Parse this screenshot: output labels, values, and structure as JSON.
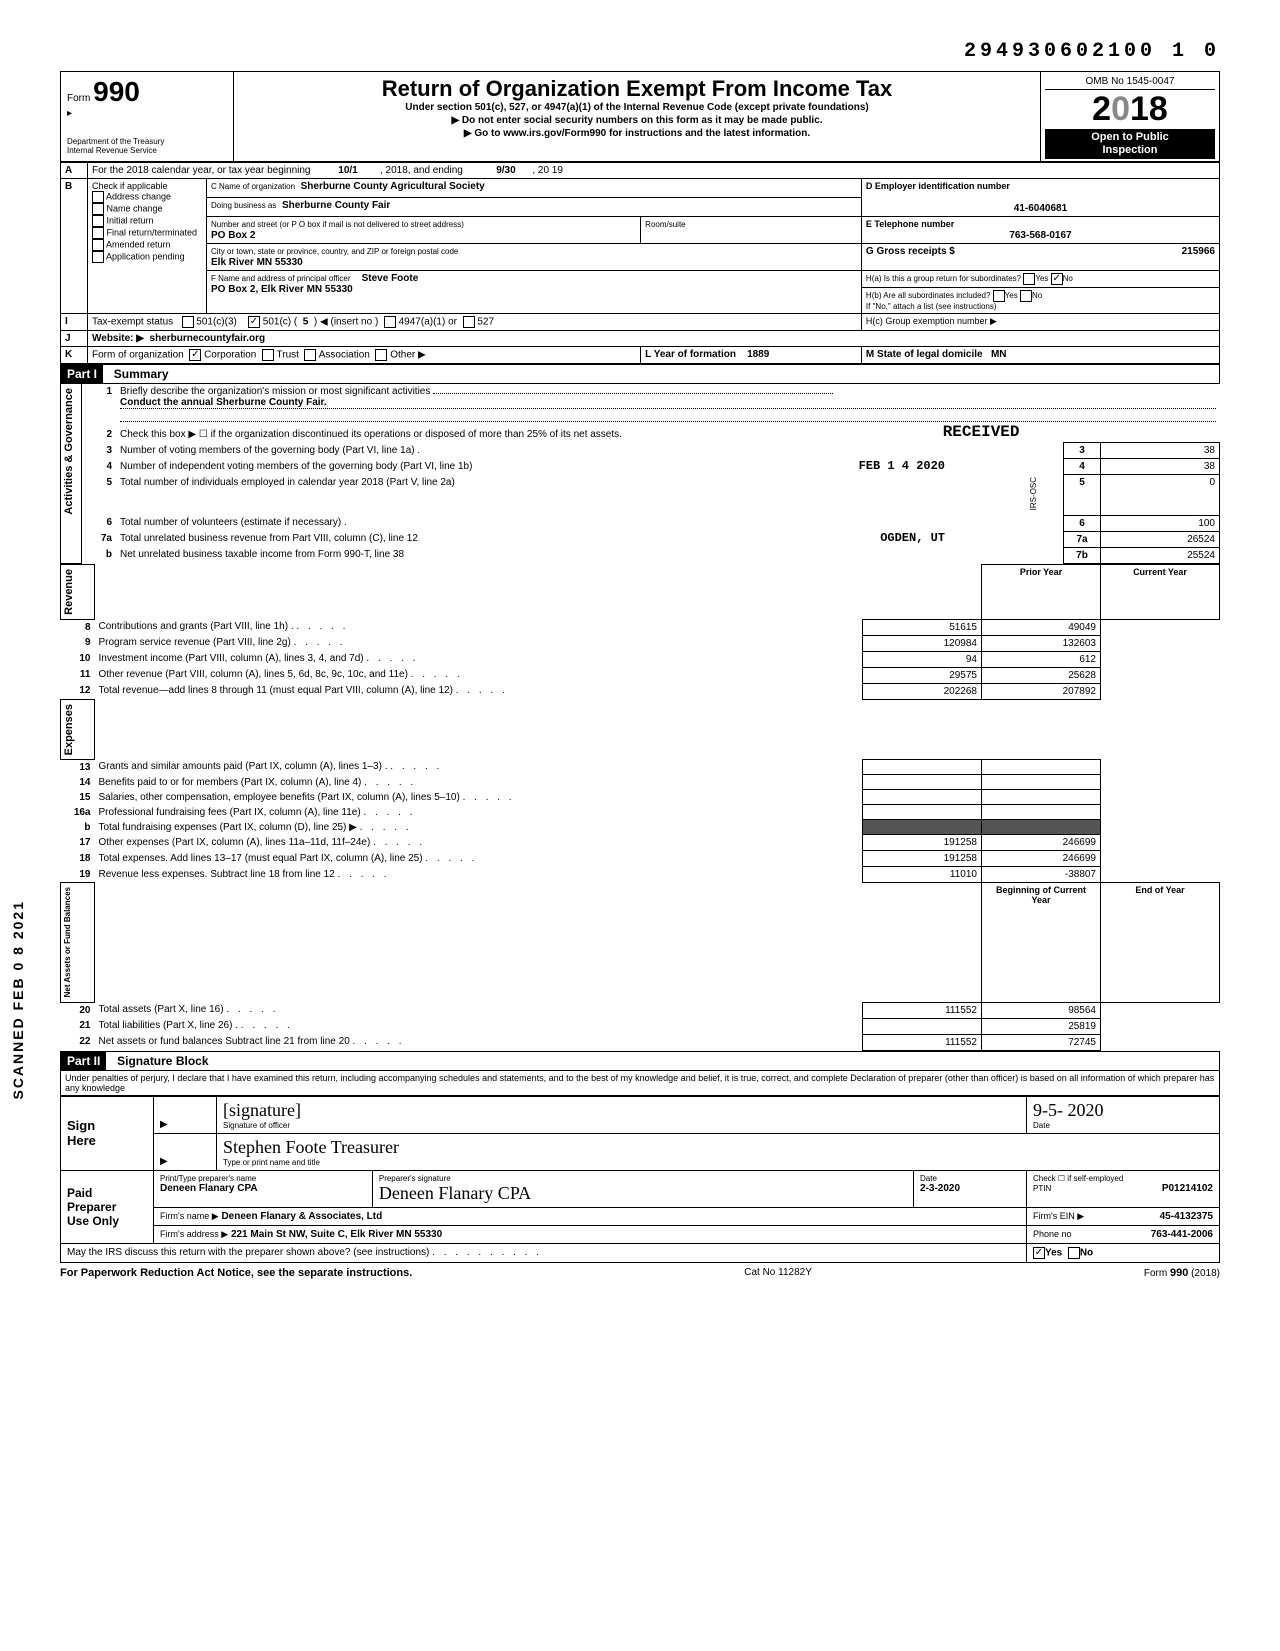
{
  "top_number": "294930602100 1  0",
  "side_stamp": "SCANNED FEB 0 8 2021",
  "header": {
    "form_label": "Form",
    "form_number": "990",
    "dept1": "Department of the Treasury",
    "dept2": "Internal Revenue Service",
    "title": "Return of Organization Exempt From Income Tax",
    "subtitle": "Under section 501(c), 527, or 4947(a)(1) of the Internal Revenue Code (except private foundations)",
    "note1": "▶ Do not enter social security numbers on this form as it may be made public.",
    "note2": "▶ Go to www.irs.gov/Form990 for instructions and the latest information.",
    "omb": "OMB No 1545-0047",
    "year": "2018",
    "open1": "Open to Public",
    "open2": "Inspection"
  },
  "rowA": {
    "label": "A",
    "text": "For the 2018 calendar year, or tax year beginning",
    "begin": "10/1",
    "mid": ", 2018, and ending",
    "end": "9/30",
    "end_year": ", 20  19"
  },
  "rowB": {
    "label": "B",
    "check_label": "Check if applicable",
    "items": [
      "Address change",
      "Name change",
      "Initial return",
      "Final return/terminated",
      "Amended return",
      "Application pending"
    ]
  },
  "rowC": {
    "name_label": "C Name of organization",
    "name": "Sherburne County Agricultural Society",
    "dba_label": "Doing business as",
    "dba": "Sherburne County Fair",
    "addr_label": "Number and street (or P O  box if mail is not delivered to street address)",
    "room_label": "Room/suite",
    "addr": "PO Box 2",
    "city_label": "City or town, state or province, country, and ZIP or foreign postal code",
    "city": "Elk River MN 55330"
  },
  "rowD": {
    "label": "D Employer identification number",
    "value": "41-6040681"
  },
  "rowE": {
    "label": "E Telephone number",
    "value": "763-568-0167"
  },
  "rowG": {
    "label": "G Gross receipts $",
    "value": "215966"
  },
  "rowF": {
    "label": "F Name and address of principal officer",
    "name": "Steve Foote",
    "addr": "PO Box 2, Elk River MN  55330"
  },
  "rowH": {
    "a_label": "H(a) Is this a group return for subordinates?",
    "yes": "Yes",
    "no": "No",
    "a_checked": "no",
    "b_label": "H(b) Are all subordinates included?",
    "b_note": "If \"No,\" attach a list  (see instructions)",
    "c_label": "H(c) Group exemption number ▶"
  },
  "rowI": {
    "label": "I",
    "text": "Tax-exempt status",
    "opts": [
      "501(c)(3)",
      "501(c) (",
      "5",
      ") ◀ (insert no )",
      "4947(a)(1) or",
      "527"
    ],
    "checked_501c": true
  },
  "rowJ": {
    "label": "J",
    "text": "Website: ▶",
    "value": "sherburnecountyfair.org"
  },
  "rowK": {
    "label": "K",
    "text": "Form of organization",
    "opts": [
      "Corporation",
      "Trust",
      "Association",
      "Other ▶"
    ],
    "checked": "Corporation",
    "L_label": "L Year of formation",
    "L_value": "1889",
    "M_label": "M State of legal domicile",
    "M_value": "MN"
  },
  "part1": {
    "header": "Part I",
    "title": "Summary",
    "section_labels": {
      "gov": "Activities & Governance",
      "rev": "Revenue",
      "exp": "Expenses",
      "net": "Net Assets or\nFund Balances"
    },
    "line1": {
      "num": "1",
      "text": "Briefly describe the organization's mission or most significant activities",
      "value": "Conduct the annual Sherburne County Fair."
    },
    "line2": {
      "num": "2",
      "text": "Check this box ▶ ☐ if the organization discontinued its operations or disposed of more than 25% of its net assets."
    },
    "received_stamp": "RECEIVED",
    "received_date": "FEB 1 4 2020",
    "received_loc": "OGDEN, UT",
    "received_side": "IRS-OSC",
    "lines_gov": [
      {
        "num": "3",
        "text": "Number of voting members of the governing body (Part VI, line 1a) .",
        "box": "3",
        "val": "38"
      },
      {
        "num": "4",
        "text": "Number of independent voting members of the governing body (Part VI, line 1b)",
        "box": "4",
        "val": "38"
      },
      {
        "num": "5",
        "text": "Total number of individuals employed in calendar year 2018 (Part V, line 2a)",
        "box": "5",
        "val": "0"
      },
      {
        "num": "6",
        "text": "Total number of volunteers (estimate if necessary)    .",
        "box": "6",
        "val": "100"
      },
      {
        "num": "7a",
        "text": "Total unrelated business revenue from Part VIII, column (C), line 12",
        "box": "7a",
        "val": "26524"
      },
      {
        "num": "b",
        "text": "Net unrelated business taxable income from Form 990-T, line 38",
        "box": "7b",
        "val": "25524"
      }
    ],
    "col_headers": {
      "prior": "Prior Year",
      "current": "Current Year"
    },
    "lines_rev": [
      {
        "num": "8",
        "text": "Contributions and grants (Part VIII, line 1h) .",
        "prior": "51615",
        "cur": "49049"
      },
      {
        "num": "9",
        "text": "Program service revenue (Part VIII, line 2g)",
        "prior": "120984",
        "cur": "132603"
      },
      {
        "num": "10",
        "text": "Investment income (Part VIII, column (A), lines 3, 4, and 7d)",
        "prior": "94",
        "cur": "612"
      },
      {
        "num": "11",
        "text": "Other revenue (Part VIII, column (A), lines 5, 6d, 8c, 9c, 10c, and 11e)",
        "prior": "29575",
        "cur": "25628"
      },
      {
        "num": "12",
        "text": "Total revenue—add lines 8 through 11 (must equal Part VIII, column (A), line 12)",
        "prior": "202268",
        "cur": "207892"
      }
    ],
    "lines_exp": [
      {
        "num": "13",
        "text": "Grants and similar amounts paid (Part IX, column (A), lines 1–3) .",
        "prior": "",
        "cur": ""
      },
      {
        "num": "14",
        "text": "Benefits paid to or for members (Part IX, column (A), line 4)",
        "prior": "",
        "cur": ""
      },
      {
        "num": "15",
        "text": "Salaries, other compensation, employee benefits (Part IX, column (A), lines 5–10)",
        "prior": "",
        "cur": ""
      },
      {
        "num": "16a",
        "text": "Professional fundraising fees (Part IX, column (A),  line 11e)",
        "prior": "",
        "cur": ""
      },
      {
        "num": "b",
        "text": "Total fundraising expenses (Part IX, column (D), line 25) ▶",
        "prior": "shaded",
        "cur": "shaded"
      },
      {
        "num": "17",
        "text": "Other expenses (Part IX, column (A), lines 11a–11d, 11f–24e)",
        "prior": "191258",
        "cur": "246699"
      },
      {
        "num": "18",
        "text": "Total expenses. Add lines 13–17 (must equal Part IX, column (A), line 25)",
        "prior": "191258",
        "cur": "246699"
      },
      {
        "num": "19",
        "text": "Revenue less expenses. Subtract line 18 from line 12",
        "prior": "11010",
        "cur": "-38807"
      }
    ],
    "col_headers2": {
      "begin": "Beginning of Current Year",
      "end": "End of Year"
    },
    "lines_net": [
      {
        "num": "20",
        "text": "Total assets (Part X, line 16)",
        "prior": "111552",
        "cur": "98564"
      },
      {
        "num": "21",
        "text": "Total liabilities (Part X, line 26) .",
        "prior": "",
        "cur": "25819"
      },
      {
        "num": "22",
        "text": "Net assets or fund balances  Subtract line 21 from line 20",
        "prior": "111552",
        "cur": "72745"
      }
    ]
  },
  "part2": {
    "header": "Part II",
    "title": "Signature Block",
    "perjury": "Under penalties of perjury, I declare that I have examined this return, including accompanying schedules and statements, and to the best of my knowledge  and belief, it is true, correct, and complete  Declaration of preparer (other than officer) is based on all information of which preparer has any knowledge",
    "sign_here": "Sign\nHere",
    "sig_officer_label": "Signature of officer",
    "sig_officer_name": "Stephen  Foote    Treasurer",
    "sig_type_label": "Type or print name and title",
    "date_label": "Date",
    "date_value": "9-5- 2020",
    "paid": "Paid\nPreparer\nUse Only",
    "prep_name_label": "Print/Type preparer's name",
    "prep_name": "Deneen Flanary CPA",
    "prep_sig_label": "Preparer's signature",
    "prep_sig": "Deneen Flanary CPA",
    "prep_date": "2-3-2020",
    "check_self": "Check ☐ if self-employed",
    "ptin_label": "PTIN",
    "ptin": "P01214102",
    "firm_name_label": "Firm's name    ▶",
    "firm_name": "Deneen Flanary & Associates, Ltd",
    "firm_ein_label": "Firm's EIN  ▶",
    "firm_ein": "45-4132375",
    "firm_addr_label": "Firm's address ▶",
    "firm_addr": "221 Main St NW, Suite C, Elk River MN  55330",
    "phone_label": "Phone no",
    "phone": "763-441-2006",
    "discuss": "May the IRS discuss this return with the preparer shown above? (see instructions)",
    "discuss_yes": "Yes",
    "discuss_no": "No"
  },
  "footer": {
    "left": "For Paperwork Reduction Act Notice, see the separate instructions.",
    "mid": "Cat  No  11282Y",
    "right": "Form 990 (2018)"
  }
}
